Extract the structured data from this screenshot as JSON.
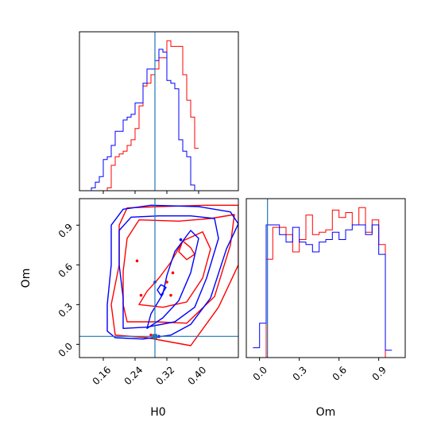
{
  "chart_data": {
    "type": "corner",
    "parameters": [
      "H0",
      "Om"
    ],
    "x_axis_labels": {
      "h0": "H0",
      "om": "Om"
    },
    "y_axis_labels": {
      "om": "Om"
    },
    "truth": {
      "H0": 0.29,
      "Om": 0.06
    },
    "series_colors": {
      "red": "#ff0000",
      "blue": "#0000ff",
      "truth": "#1f77b4"
    },
    "h0_marginal": {
      "range": [
        0.1,
        0.5
      ],
      "ticks": [
        0.16,
        0.24,
        0.32,
        0.4
      ],
      "tick_labels": [
        "0.16",
        "0.24",
        "0.32",
        "0.40"
      ],
      "bin_width": 0.01,
      "blue": [
        0,
        0,
        0,
        1,
        3,
        5,
        11,
        12,
        16,
        21,
        21,
        25,
        26,
        27,
        31,
        31,
        38,
        43,
        43,
        46,
        50,
        49,
        39,
        38,
        36,
        18,
        14,
        12,
        2,
        0
      ],
      "red": [
        0,
        0,
        0,
        0,
        0,
        0,
        0,
        1,
        9,
        12,
        13,
        14,
        16,
        18,
        22,
        30,
        37,
        38,
        41,
        43,
        47,
        47,
        53,
        51,
        51,
        51,
        41,
        32,
        26,
        15
      ],
      "bin_start": 0.1
    },
    "om_marginal": {
      "range": [
        -0.1,
        1.1
      ],
      "ticks": [
        0.0,
        0.3,
        0.6,
        0.9
      ],
      "tick_labels": [
        "0.0",
        "0.3",
        "0.6",
        "0.9"
      ],
      "bin_start": -0.05,
      "bin_width": 0.05,
      "blue": [
        4,
        14,
        54,
        54,
        50,
        47,
        53,
        47,
        46,
        43,
        47,
        48,
        51,
        48,
        52,
        54,
        54,
        50,
        54,
        42,
        3
      ],
      "red": [
        0,
        0,
        40,
        53,
        53,
        50,
        43,
        48,
        58,
        50,
        51,
        52,
        60,
        57,
        59,
        54,
        61,
        51,
        56,
        46,
        0
      ]
    },
    "joint": {
      "xlim": [
        0.1,
        0.5
      ],
      "ylim": [
        -0.1,
        1.1
      ],
      "x_ticks": [
        0.16,
        0.24,
        0.32,
        0.4
      ],
      "y_ticks": [
        0.0,
        0.3,
        0.6,
        0.9
      ],
      "y_tick_labels": [
        "0.0",
        "0.3",
        "0.6",
        "0.9"
      ],
      "blue_contours": [
        [
          [
            0.19,
            0.05
          ],
          [
            0.26,
            0.04
          ],
          [
            0.33,
            0.07
          ],
          [
            0.38,
            0.15
          ],
          [
            0.43,
            0.35
          ],
          [
            0.47,
            0.72
          ],
          [
            0.5,
            0.91
          ],
          [
            0.48,
            1.0
          ],
          [
            0.4,
            1.04
          ],
          [
            0.28,
            1.05
          ],
          [
            0.21,
            1.02
          ],
          [
            0.18,
            0.9
          ],
          [
            0.18,
            0.6
          ],
          [
            0.17,
            0.3
          ],
          [
            0.17,
            0.1
          ]
        ],
        [
          [
            0.21,
            0.12
          ],
          [
            0.27,
            0.13
          ],
          [
            0.34,
            0.17
          ],
          [
            0.39,
            0.28
          ],
          [
            0.42,
            0.5
          ],
          [
            0.45,
            0.8
          ],
          [
            0.44,
            0.95
          ],
          [
            0.38,
            0.97
          ],
          [
            0.3,
            0.97
          ],
          [
            0.23,
            0.96
          ],
          [
            0.2,
            0.86
          ],
          [
            0.2,
            0.6
          ],
          [
            0.21,
            0.35
          ]
        ],
        [
          [
            0.27,
            0.12
          ],
          [
            0.31,
            0.2
          ],
          [
            0.35,
            0.33
          ],
          [
            0.38,
            0.54
          ],
          [
            0.4,
            0.8
          ],
          [
            0.38,
            0.86
          ],
          [
            0.34,
            0.7
          ],
          [
            0.32,
            0.52
          ],
          [
            0.31,
            0.38
          ],
          [
            0.28,
            0.23
          ]
        ],
        [
          [
            0.305,
            0.37
          ],
          [
            0.318,
            0.43
          ],
          [
            0.305,
            0.45
          ],
          [
            0.296,
            0.41
          ]
        ]
      ],
      "red_contours": [
        [
          [
            0.19,
            0.07
          ],
          [
            0.27,
            0.05
          ],
          [
            0.38,
            -0.01
          ],
          [
            0.45,
            0.28
          ],
          [
            0.5,
            0.6
          ],
          [
            0.5,
            1.05
          ],
          [
            0.42,
            1.05
          ],
          [
            0.3,
            1.04
          ],
          [
            0.22,
            1.03
          ],
          [
            0.2,
            0.9
          ],
          [
            0.2,
            0.6
          ],
          [
            0.18,
            0.3
          ]
        ],
        [
          [
            0.22,
            0.17
          ],
          [
            0.29,
            0.17
          ],
          [
            0.37,
            0.16
          ],
          [
            0.44,
            0.36
          ],
          [
            0.48,
            0.75
          ],
          [
            0.49,
            0.98
          ],
          [
            0.43,
            0.95
          ],
          [
            0.35,
            0.93
          ],
          [
            0.25,
            0.94
          ],
          [
            0.22,
            0.8
          ],
          [
            0.21,
            0.55
          ],
          [
            0.21,
            0.3
          ]
        ],
        [
          [
            0.25,
            0.3
          ],
          [
            0.31,
            0.28
          ],
          [
            0.37,
            0.32
          ],
          [
            0.41,
            0.5
          ],
          [
            0.43,
            0.72
          ],
          [
            0.41,
            0.85
          ],
          [
            0.36,
            0.78
          ],
          [
            0.33,
            0.62
          ],
          [
            0.3,
            0.5
          ],
          [
            0.27,
            0.4
          ]
        ],
        [
          [
            0.36,
            0.78
          ],
          [
            0.38,
            0.73
          ],
          [
            0.39,
            0.68
          ],
          [
            0.37,
            0.64
          ],
          [
            0.35,
            0.7
          ]
        ]
      ],
      "blue_points": [
        [
          0.29,
          0.47
        ],
        [
          0.355,
          0.79
        ],
        [
          0.3,
          0.06
        ]
      ],
      "red_points": [
        [
          0.245,
          0.63
        ],
        [
          0.255,
          0.37
        ],
        [
          0.335,
          0.54
        ],
        [
          0.32,
          0.47
        ],
        [
          0.33,
          0.37
        ],
        [
          0.28,
          0.07
        ]
      ]
    }
  }
}
